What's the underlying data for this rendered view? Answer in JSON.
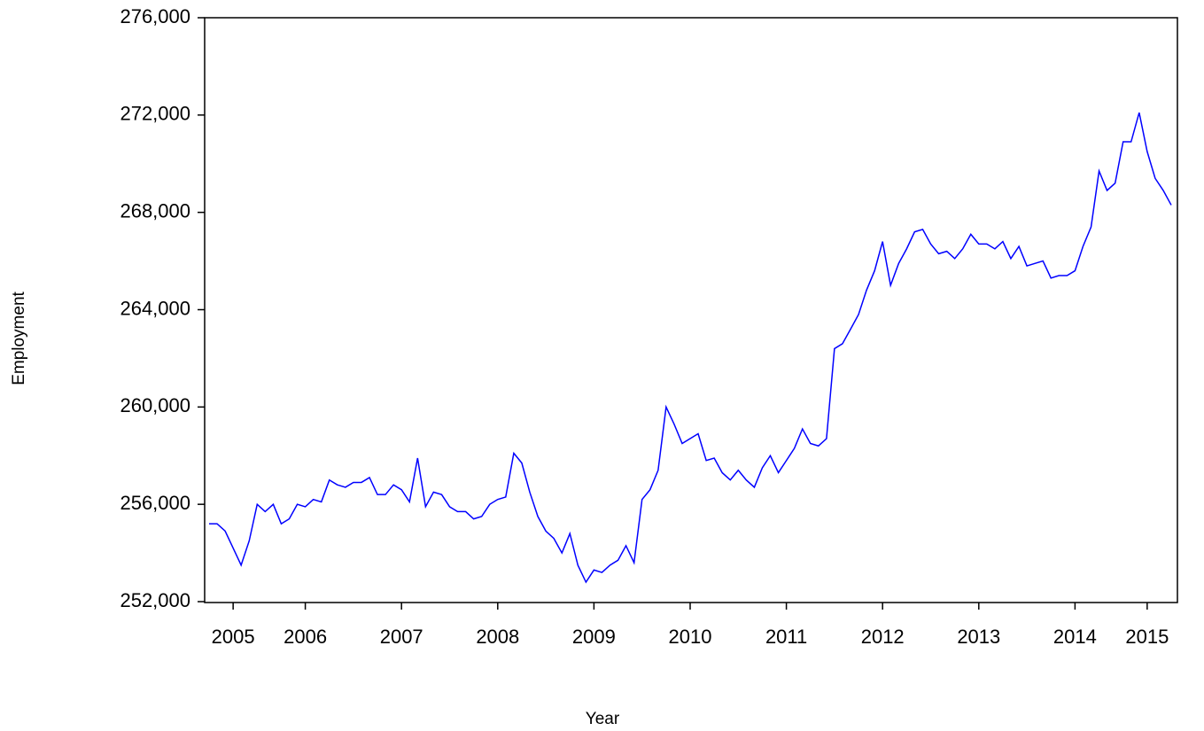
{
  "chart_data": {
    "type": "line",
    "x_label": "Year",
    "y_label": "Employment",
    "x": [
      2005.5,
      2005.583,
      2005.667,
      2005.75,
      2005.833,
      2005.917,
      2006,
      2006.083,
      2006.167,
      2006.25,
      2006.333,
      2006.417,
      2006.5,
      2006.583,
      2006.667,
      2006.75,
      2006.833,
      2006.917,
      2007,
      2007.083,
      2007.167,
      2007.25,
      2007.333,
      2007.417,
      2007.5,
      2007.583,
      2007.667,
      2007.75,
      2007.833,
      2007.917,
      2008,
      2008.083,
      2008.167,
      2008.25,
      2008.333,
      2008.417,
      2008.5,
      2008.583,
      2008.667,
      2008.75,
      2008.833,
      2008.917,
      2009,
      2009.083,
      2009.167,
      2009.25,
      2009.333,
      2009.417,
      2009.5,
      2009.583,
      2009.667,
      2009.75,
      2009.833,
      2009.917,
      2010,
      2010.083,
      2010.167,
      2010.25,
      2010.333,
      2010.417,
      2010.5,
      2010.583,
      2010.667,
      2010.75,
      2010.833,
      2010.917,
      2011,
      2011.083,
      2011.167,
      2011.25,
      2011.333,
      2011.417,
      2011.5,
      2011.583,
      2011.667,
      2011.75,
      2011.833,
      2011.917,
      2012,
      2012.083,
      2012.167,
      2012.25,
      2012.333,
      2012.417,
      2012.5,
      2012.583,
      2012.667,
      2012.75,
      2012.833,
      2012.917,
      2013,
      2013.083,
      2013.167,
      2013.25,
      2013.333,
      2013.417,
      2013.5,
      2013.583,
      2013.667,
      2013.75,
      2013.833,
      2013.917,
      2014,
      2014.083,
      2014.167,
      2014.25,
      2014.333,
      2014.417,
      2014.5,
      2014.583,
      2014.667,
      2014.75,
      2014.833,
      2014.917,
      2015,
      2015.083,
      2015.167,
      2015.25,
      2015.333,
      2015.417,
      2015.5
    ],
    "series": [
      {
        "name": "Employment",
        "color": "#0000ff",
        "values": [
          255200,
          255200,
          254900,
          254200,
          253500,
          254500,
          256000,
          255700,
          256000,
          255200,
          255400,
          256000,
          255900,
          256200,
          256100,
          257000,
          256800,
          256700,
          256900,
          256900,
          257100,
          256400,
          256400,
          256800,
          256600,
          256100,
          257900,
          255900,
          256500,
          256400,
          255900,
          255700,
          255700,
          255400,
          255500,
          256000,
          256200,
          256300,
          258100,
          257700,
          256500,
          255500,
          254900,
          254600,
          254000,
          254800,
          253500,
          252800,
          253300,
          253200,
          253500,
          253700,
          254300,
          253600,
          256200,
          256600,
          257400,
          260000,
          259300,
          258500,
          258700,
          258900,
          257800,
          257900,
          257300,
          257000,
          257400,
          257000,
          256700,
          257500,
          258000,
          257300,
          257800,
          258300,
          259100,
          258500,
          258400,
          258700,
          262400,
          262600,
          263200,
          263800,
          264800,
          265600,
          266800,
          265000,
          265900,
          266500,
          267200,
          267300,
          266700,
          266300,
          266400,
          266100,
          266500,
          267100,
          266700,
          266700,
          266500,
          266800,
          266100,
          266600,
          265800,
          265900,
          266000,
          265300,
          265400,
          265400,
          265600,
          266600,
          267400,
          269700,
          268900,
          269200,
          270900,
          270900,
          272100,
          270500,
          269400,
          268900,
          268300
        ]
      }
    ],
    "xlim": [
      2005.5,
      2015.5
    ],
    "xticks": [
      {
        "value": 2005.75,
        "label": "2005"
      },
      {
        "value": 2006.5,
        "label": "2006"
      },
      {
        "value": 2007.5,
        "label": "2007"
      },
      {
        "value": 2008.5,
        "label": "2008"
      },
      {
        "value": 2009.5,
        "label": "2009"
      },
      {
        "value": 2010.5,
        "label": "2010"
      },
      {
        "value": 2011.5,
        "label": "2011"
      },
      {
        "value": 2012.5,
        "label": "2012"
      },
      {
        "value": 2013.5,
        "label": "2013"
      },
      {
        "value": 2014.5,
        "label": "2014"
      },
      {
        "value": 2015.25,
        "label": "2015"
      }
    ],
    "ylim": [
      252000,
      276000
    ],
    "yticks": [
      {
        "value": 252000,
        "label": "252,000"
      },
      {
        "value": 256000,
        "label": "256,000"
      },
      {
        "value": 260000,
        "label": "260,000"
      },
      {
        "value": 264000,
        "label": "264,000"
      },
      {
        "value": 268000,
        "label": "268,000"
      },
      {
        "value": 272000,
        "label": "272,000"
      },
      {
        "value": 276000,
        "label": "276,000"
      }
    ],
    "grid": false
  }
}
